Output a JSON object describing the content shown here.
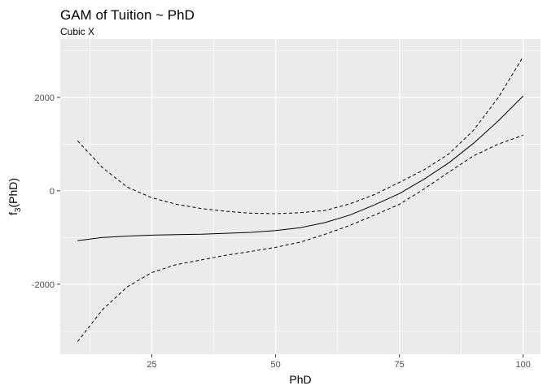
{
  "chart_data": {
    "type": "line",
    "title": "GAM of Tuition ~ PhD",
    "subtitle": "Cubic X",
    "xlabel": "PhD",
    "ylabel_main": "f",
    "ylabel_sub": "3",
    "ylabel_tail": "(PhD)",
    "xlim": [
      6.5,
      103.5
    ],
    "ylim": [
      -3500,
      3250
    ],
    "x_ticks": [
      25,
      50,
      75,
      100
    ],
    "x_tick_labels": [
      "25",
      "50",
      "75",
      "100"
    ],
    "y_ticks": [
      -2000,
      0,
      2000
    ],
    "y_tick_labels": [
      "-2000",
      "0",
      "2000"
    ],
    "x_minor": [
      12.5,
      37.5,
      62.5,
      87.5
    ],
    "y_minor": [
      -3000,
      -1000,
      1000,
      3000
    ],
    "grid": true,
    "background": "#ebebeb",
    "series": [
      {
        "role": "fit",
        "style": "solid",
        "x": [
          10,
          15,
          20,
          25,
          30,
          35,
          40,
          45,
          50,
          55,
          60,
          65,
          70,
          75,
          80,
          85,
          90,
          95,
          100
        ],
        "y": [
          -1070,
          -1000,
          -970,
          -950,
          -940,
          -930,
          -910,
          -890,
          -850,
          -790,
          -680,
          -520,
          -300,
          -60,
          250,
          600,
          1020,
          1500,
          2030
        ]
      },
      {
        "role": "upper",
        "style": "dashed",
        "x": [
          10,
          15,
          20,
          25,
          30,
          35,
          40,
          45,
          50,
          55,
          60,
          65,
          70,
          75,
          80,
          85,
          90,
          95,
          100
        ],
        "y": [
          1070,
          500,
          80,
          -150,
          -290,
          -380,
          -440,
          -480,
          -490,
          -470,
          -420,
          -280,
          -80,
          180,
          450,
          790,
          1300,
          2000,
          2870
        ]
      },
      {
        "role": "lower",
        "style": "dashed",
        "x": [
          10,
          15,
          20,
          25,
          30,
          35,
          40,
          45,
          50,
          55,
          60,
          65,
          70,
          75,
          80,
          85,
          90,
          95,
          100
        ],
        "y": [
          -3230,
          -2550,
          -2060,
          -1750,
          -1580,
          -1480,
          -1380,
          -1300,
          -1210,
          -1100,
          -930,
          -740,
          -520,
          -290,
          40,
          400,
          750,
          1000,
          1190
        ]
      }
    ]
  }
}
